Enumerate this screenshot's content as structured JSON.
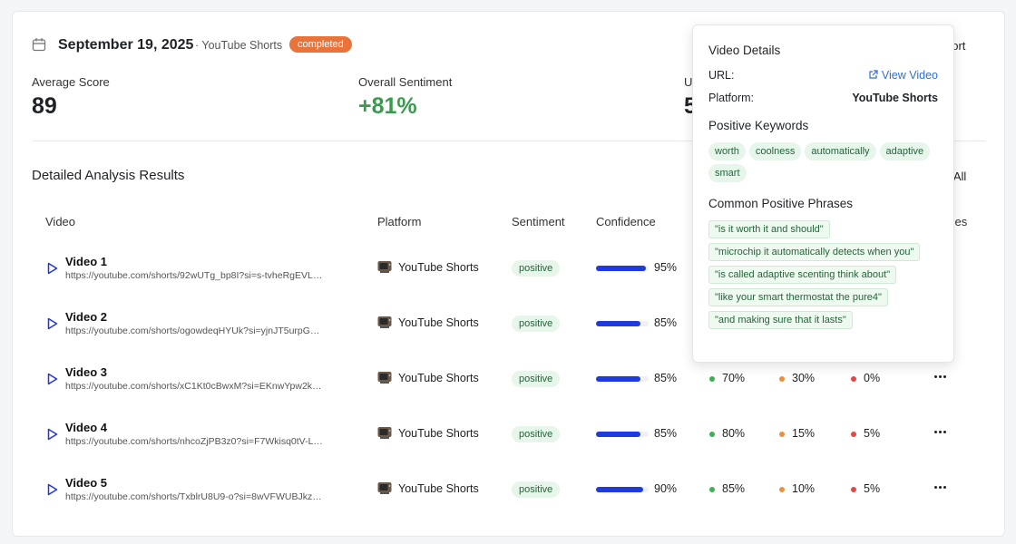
{
  "header": {
    "date": "September 19, 2025",
    "platform": "· YouTube Shorts",
    "status": "completed",
    "action": "port"
  },
  "stats": [
    {
      "label": "Average Score",
      "value": "89"
    },
    {
      "label": "Overall Sentiment",
      "value": "+81%"
    },
    {
      "label": "U",
      "value": "5"
    }
  ],
  "section": {
    "title": "Detailed Analysis Results",
    "action": "rt All"
  },
  "table": {
    "columns": [
      "Video",
      "Platform",
      "Sentiment",
      "Confidence",
      "ses"
    ],
    "rows": [
      {
        "name": "Video 1",
        "url": "https://youtube.com/shorts/92wUTg_bp8I?si=s-tvheRgEVL…",
        "platform": "YouTube Shorts",
        "sentiment": "positive",
        "confidence": 95,
        "confidence_label": "95%"
      },
      {
        "name": "Video 2",
        "url": "https://youtube.com/shorts/ogowdeqHYUk?si=yjnJT5urpG…",
        "platform": "YouTube Shorts",
        "sentiment": "positive",
        "confidence": 85,
        "confidence_label": "85%"
      },
      {
        "name": "Video 3",
        "url": "https://youtube.com/shorts/xC1Kt0cBwxM?si=EKnwYpw2k…",
        "platform": "YouTube Shorts",
        "sentiment": "positive",
        "confidence": 85,
        "confidence_label": "85%",
        "positive": "70%",
        "neutral": "30%",
        "negative": "0%"
      },
      {
        "name": "Video 4",
        "url": "https://youtube.com/shorts/nhcoZjPB3z0?si=F7Wkisq0tV-L…",
        "platform": "YouTube Shorts",
        "sentiment": "positive",
        "confidence": 85,
        "confidence_label": "85%",
        "positive": "80%",
        "neutral": "15%",
        "negative": "5%"
      },
      {
        "name": "Video 5",
        "url": "https://youtube.com/shorts/TxblrU8U9-o?si=8wVFWUBJkz…",
        "platform": "YouTube Shorts",
        "sentiment": "positive",
        "confidence": 90,
        "confidence_label": "90%",
        "positive": "85%",
        "neutral": "10%",
        "negative": "5%"
      }
    ]
  },
  "popup": {
    "title": "Video Details",
    "url_label": "URL:",
    "url_link": "View Video",
    "platform_label": "Platform:",
    "platform": "YouTube Shorts",
    "keywords_title": "Positive Keywords",
    "keywords": [
      "worth",
      "coolness",
      "automatically",
      "adaptive",
      "smart"
    ],
    "phrases_title": "Common Positive Phrases",
    "phrases": [
      "\"is it worth it and should\"",
      "\"microchip it automatically detects when you\"",
      "\"is called adaptive scenting think about\"",
      "\"like your smart thermostat the pure4\"",
      "\"and making sure that it lasts\""
    ]
  }
}
